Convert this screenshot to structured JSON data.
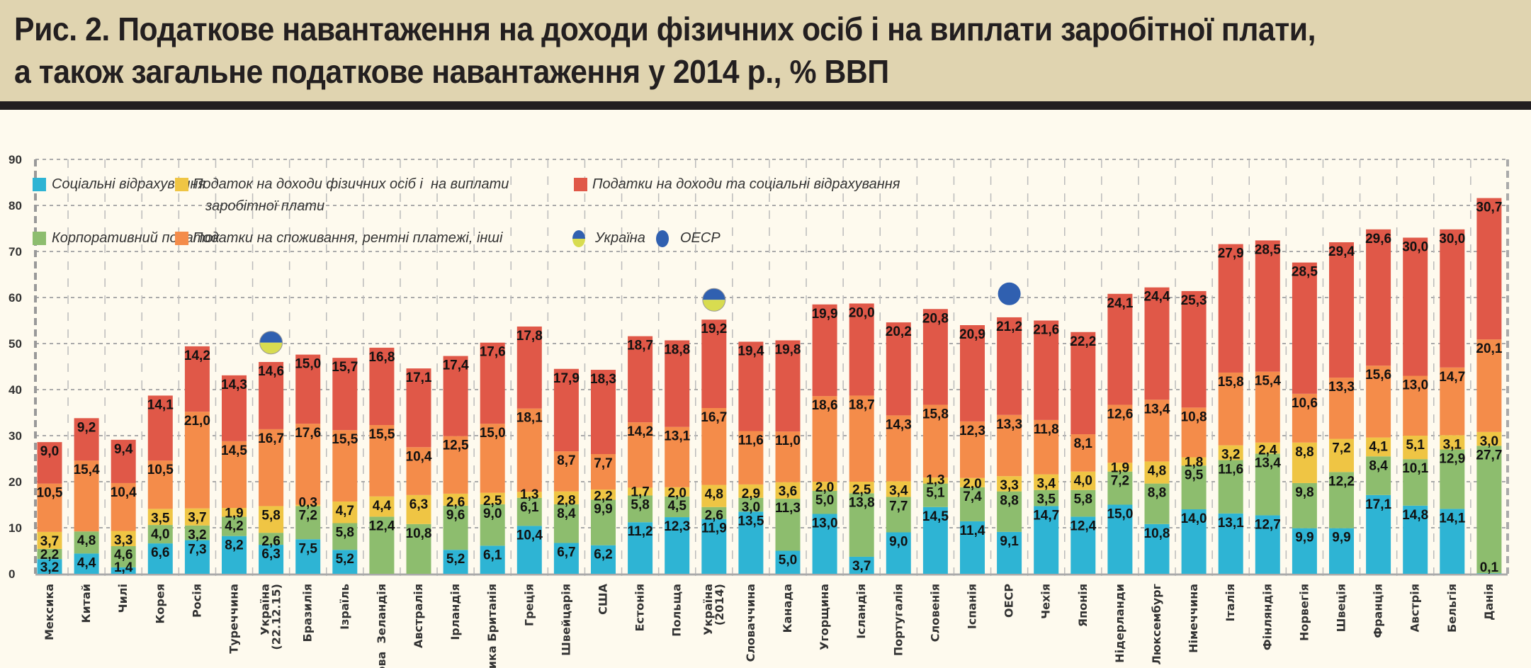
{
  "title": {
    "line1": "Рис. 2. Податкове навантаження на доходи фізичних осіб і на виплати заробітної плати,",
    "line2": "а також загальне податкове навантаження у 2014 р., % ВВП"
  },
  "colors": {
    "social": "#2eb4d4",
    "corporate": "#8dbd6e",
    "pit": "#efc544",
    "consumption": "#f48c4a",
    "income_social": "#e05848",
    "ukraine_top": "#3060b0",
    "ukraine_bottom": "#d8dc50",
    "oecd": "#3060b0",
    "background": "#fefaee",
    "title_band": "#e0d4b0"
  },
  "legend": {
    "social": "Соціальні відрахування",
    "pit_line1": "Податок на доходи фізичних осіб і  на виплати",
    "pit_line2": "заробітної плати",
    "income_social": "Податки на доходи та соціальні відрахування",
    "corporate": "Корпоративний податок",
    "consumption": "Податки на споживання, рентні платежі, інші",
    "ukraine": "Україна",
    "oecd": "ОЕСР"
  },
  "chart_data": {
    "type": "bar",
    "stacked": true,
    "title": "Рис. 2. Податкове навантаження на доходи фізичних осіб і на виплати заробітної плати, а також загальне податкове навантаження у 2014 р., % ВВП",
    "ylim": [
      0,
      90
    ],
    "yticks": [
      "0",
      "10",
      "20",
      "30",
      "40",
      "50",
      "60",
      "70",
      "80",
      "90"
    ],
    "grid": true,
    "legend_position": "top-left",
    "categories": [
      "Мексика",
      "Китай",
      "Чилі",
      "Корея",
      "Росія",
      "Туреччина",
      "Україна\n(22.12.15)",
      "Бразилія",
      "Ізраїль",
      "Нова  Зеландія",
      "Австралія",
      "Ірландія",
      "Велика Британія",
      "Греція",
      "Швейцарія",
      "США",
      "Естонія",
      "Польща",
      "Україна\n(2014)",
      "Словаччина",
      "Канада",
      "Угорщина",
      "Ісландія",
      "Португалія",
      "Словенія",
      "Іспанія",
      "ОЕСР",
      "Чехія",
      "Японія",
      "Нідерланди",
      "Люксембург",
      "Німеччина",
      "Італія",
      "Фінляндія",
      "Норвегія",
      "Швеція",
      "Франція",
      "Австрія",
      "Бельгія",
      "Данія"
    ],
    "series": [
      {
        "name": "Соціальні відрахування",
        "key": "social",
        "values": [
          3.2,
          4.4,
          1.4,
          6.6,
          7.3,
          8.2,
          6.3,
          7.5,
          5.2,
          null,
          null,
          5.2,
          6.1,
          10.4,
          6.7,
          6.2,
          11.2,
          12.3,
          11.9,
          13.5,
          5.0,
          13.0,
          3.7,
          9.0,
          14.5,
          11.4,
          9.1,
          14.7,
          12.4,
          15.0,
          10.8,
          14.0,
          13.1,
          12.7,
          9.9,
          9.9,
          17.1,
          14.8,
          14.1,
          0.1
        ]
      },
      {
        "name": "Корпоративний податок",
        "key": "corporate",
        "values": [
          2.2,
          4.8,
          4.6,
          4.0,
          3.2,
          4.2,
          2.6,
          7.2,
          5.8,
          12.4,
          10.8,
          9.6,
          9.0,
          6.1,
          8.4,
          9.9,
          5.8,
          4.5,
          2.6,
          3.0,
          11.3,
          5.0,
          13.8,
          7.7,
          5.1,
          7.4,
          8.8,
          3.5,
          5.8,
          7.2,
          8.8,
          9.5,
          11.6,
          13.4,
          9.8,
          12.2,
          8.4,
          10.1,
          12.9,
          27.7
        ]
      },
      {
        "name": "Податок на доходи фізичних осіб і  на виплати заробітної плати",
        "key": "pit",
        "values": [
          3.7,
          null,
          3.3,
          3.5,
          3.7,
          1.9,
          5.8,
          0.3,
          4.7,
          4.4,
          6.3,
          2.6,
          2.5,
          1.3,
          2.8,
          2.2,
          1.7,
          2.0,
          4.8,
          2.9,
          3.6,
          2.0,
          2.5,
          3.4,
          1.3,
          2.0,
          3.3,
          3.4,
          4.0,
          1.9,
          4.8,
          1.8,
          3.2,
          2.4,
          8.8,
          7.2,
          4.1,
          5.1,
          3.1,
          3.0
        ]
      },
      {
        "name": "Податки на споживання, рентні платежі, інші",
        "key": "consumption",
        "values": [
          10.5,
          15.4,
          10.4,
          10.5,
          21.0,
          14.5,
          16.7,
          17.6,
          15.5,
          15.5,
          10.4,
          12.5,
          15.0,
          18.1,
          8.7,
          7.7,
          14.2,
          13.1,
          16.7,
          11.6,
          11.0,
          18.6,
          18.7,
          14.3,
          15.8,
          12.3,
          13.3,
          11.8,
          8.1,
          12.6,
          13.4,
          10.8,
          15.8,
          15.4,
          10.6,
          13.3,
          15.6,
          13.0,
          14.7,
          20.1
        ]
      },
      {
        "name": "Податки на доходи та соціальні відрахування",
        "key": "income_social",
        "values": [
          9.0,
          9.2,
          9.4,
          14.1,
          14.2,
          14.3,
          14.6,
          15.0,
          15.7,
          16.8,
          17.1,
          17.4,
          17.6,
          17.8,
          17.9,
          18.3,
          18.7,
          18.8,
          19.2,
          19.4,
          19.8,
          19.9,
          20.0,
          20.2,
          20.8,
          20.9,
          21.2,
          21.6,
          22.2,
          24.1,
          24.4,
          25.3,
          27.9,
          28.5,
          28.5,
          29.4,
          29.6,
          30.0,
          30.0,
          30.7
        ]
      }
    ],
    "markers": [
      {
        "name": "Україна",
        "category": "Україна\n(22.12.15)",
        "value": 50.2,
        "style": "ukraine"
      },
      {
        "name": "Україна",
        "category": "Україна\n(2014)",
        "value": 59.5,
        "style": "ukraine"
      },
      {
        "name": "ОЕСР",
        "category": "ОЕСР",
        "value": 60.8,
        "style": "oecd"
      }
    ]
  }
}
